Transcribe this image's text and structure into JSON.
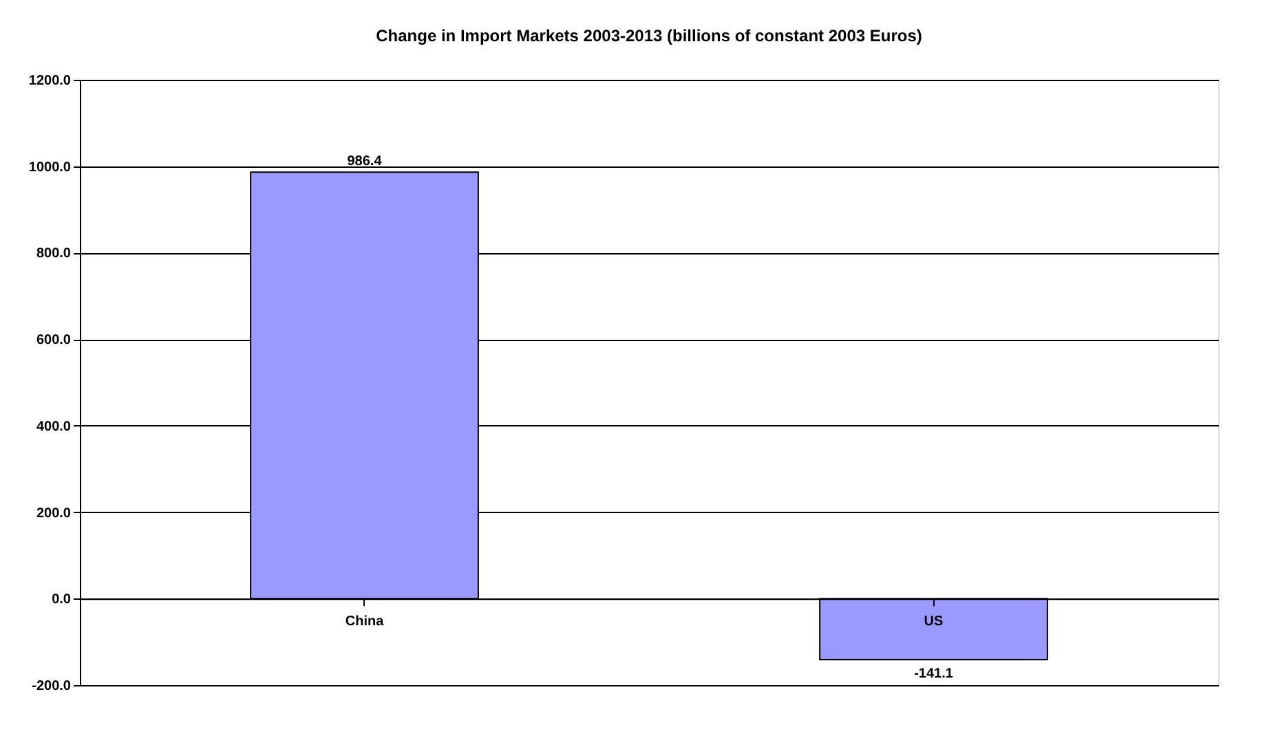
{
  "chart_data": {
    "type": "bar",
    "title": "Change in Import Markets 2003-2013 (billions of constant 2003 Euros)",
    "categories": [
      "China",
      "US"
    ],
    "values": [
      986.4,
      -141.1
    ],
    "color": "#9999ff",
    "ylim": [
      -200,
      1200
    ],
    "yticks": [
      {
        "value": -200,
        "label": "-200.0"
      },
      {
        "value": 0,
        "label": "0.0"
      },
      {
        "value": 200,
        "label": "200.0"
      },
      {
        "value": 400,
        "label": "400.0"
      },
      {
        "value": 600,
        "label": "600.0"
      },
      {
        "value": 800,
        "label": "800.0"
      },
      {
        "value": 1000,
        "label": "1000.0"
      },
      {
        "value": 1200,
        "label": "1200.0"
      }
    ],
    "grid": "y",
    "data_labels": true
  }
}
